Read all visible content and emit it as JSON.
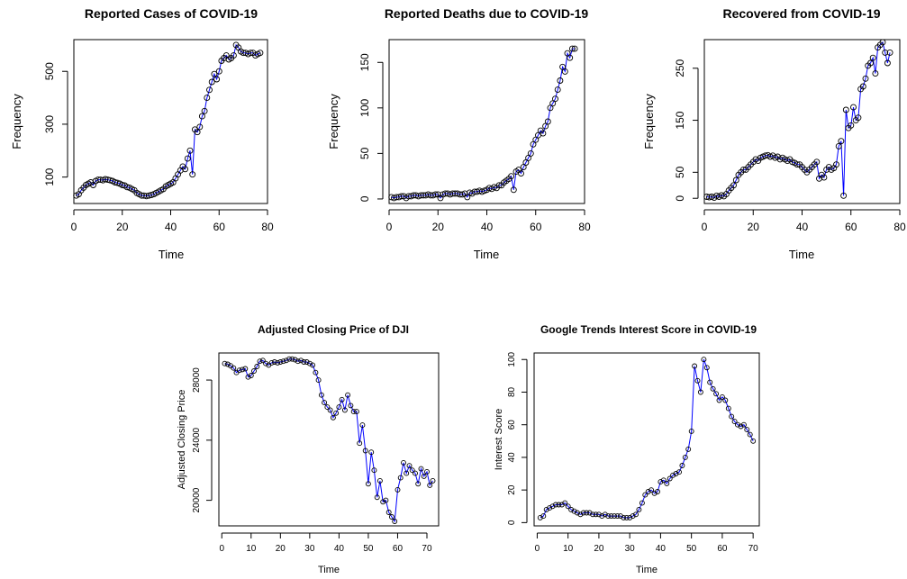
{
  "chart_data": [
    {
      "type": "line",
      "title": "Reported Cases of COVID-19",
      "xlabel": "Time",
      "ylabel": "Frequency",
      "xlim": [
        0,
        80
      ],
      "ylim": [
        0,
        620
      ],
      "xticks": [
        0,
        20,
        40,
        60,
        80
      ],
      "yticks": [
        100,
        300,
        500
      ],
      "series": [
        {
          "color": "#0000ff",
          "x": [
            1,
            2,
            3,
            4,
            5,
            6,
            7,
            8,
            9,
            10,
            11,
            12,
            13,
            14,
            15,
            16,
            17,
            18,
            19,
            20,
            21,
            22,
            23,
            24,
            25,
            26,
            27,
            28,
            29,
            30,
            31,
            32,
            33,
            34,
            35,
            36,
            37,
            38,
            39,
            40,
            41,
            42,
            43,
            44,
            45,
            46,
            47,
            48,
            49,
            50,
            51,
            52,
            53,
            54,
            55,
            56,
            57,
            58,
            59,
            60,
            61,
            62,
            63,
            64,
            65,
            66,
            67,
            68,
            69,
            70,
            71,
            72,
            73,
            74,
            75,
            76,
            77
          ],
          "y": [
            30,
            35,
            50,
            60,
            70,
            75,
            80,
            70,
            85,
            90,
            90,
            88,
            92,
            90,
            88,
            85,
            80,
            78,
            75,
            70,
            68,
            62,
            60,
            55,
            50,
            40,
            35,
            30,
            30,
            28,
            30,
            32,
            35,
            40,
            45,
            50,
            55,
            65,
            70,
            75,
            80,
            95,
            110,
            125,
            140,
            130,
            170,
            200,
            110,
            280,
            270,
            290,
            330,
            350,
            400,
            430,
            460,
            490,
            470,
            500,
            540,
            550,
            560,
            545,
            550,
            560,
            600,
            590,
            575,
            570,
            570,
            565,
            570,
            570,
            560,
            565,
            570
          ]
        }
      ]
    },
    {
      "type": "line",
      "title": "Reported Deaths due to COVID-19",
      "xlabel": "Time",
      "ylabel": "Frequency",
      "xlim": [
        0,
        80
      ],
      "ylim": [
        -5,
        175
      ],
      "xticks": [
        0,
        20,
        40,
        60,
        80
      ],
      "yticks": [
        0,
        50,
        100,
        150
      ],
      "series": [
        {
          "color": "#0000ff",
          "x": [
            1,
            2,
            3,
            4,
            5,
            6,
            7,
            8,
            9,
            10,
            11,
            12,
            13,
            14,
            15,
            16,
            17,
            18,
            19,
            20,
            21,
            22,
            23,
            24,
            25,
            26,
            27,
            28,
            29,
            30,
            31,
            32,
            33,
            34,
            35,
            36,
            37,
            38,
            39,
            40,
            41,
            42,
            43,
            44,
            45,
            46,
            47,
            48,
            49,
            50,
            51,
            52,
            53,
            54,
            55,
            56,
            57,
            58,
            59,
            60,
            61,
            62,
            63,
            64,
            65,
            66,
            67,
            68,
            69,
            70,
            71,
            72,
            73,
            74,
            75,
            76
          ],
          "y": [
            2,
            1,
            2,
            2,
            3,
            3,
            1,
            3,
            3,
            4,
            4,
            3,
            4,
            4,
            4,
            5,
            4,
            4,
            5,
            5,
            1,
            5,
            6,
            6,
            5,
            6,
            6,
            6,
            5,
            5,
            6,
            2,
            7,
            6,
            8,
            8,
            9,
            8,
            9,
            10,
            12,
            11,
            13,
            12,
            15,
            15,
            18,
            20,
            22,
            25,
            10,
            30,
            32,
            28,
            35,
            40,
            45,
            50,
            60,
            65,
            70,
            75,
            72,
            80,
            85,
            100,
            105,
            110,
            120,
            130,
            145,
            140,
            160,
            155,
            165,
            165
          ]
        }
      ]
    },
    {
      "type": "line",
      "title": "Recovered from COVID-19",
      "xlabel": "Time",
      "ylabel": "Frequency",
      "xlim": [
        0,
        80
      ],
      "ylim": [
        -10,
        305
      ],
      "xticks": [
        0,
        20,
        40,
        60,
        80
      ],
      "yticks": [
        0,
        50,
        150,
        250
      ],
      "series": [
        {
          "color": "#0000ff",
          "x": [
            1,
            2,
            3,
            4,
            5,
            6,
            7,
            8,
            9,
            10,
            11,
            12,
            13,
            14,
            15,
            16,
            17,
            18,
            19,
            20,
            21,
            22,
            23,
            24,
            25,
            26,
            27,
            28,
            29,
            30,
            31,
            32,
            33,
            34,
            35,
            36,
            37,
            38,
            39,
            40,
            41,
            42,
            43,
            44,
            45,
            46,
            47,
            48,
            49,
            50,
            51,
            52,
            53,
            54,
            55,
            56,
            57,
            58,
            59,
            60,
            61,
            62,
            63,
            64,
            65,
            66,
            67,
            68,
            69,
            70,
            71,
            72,
            73,
            74,
            75,
            76
          ],
          "y": [
            3,
            2,
            3,
            1,
            5,
            3,
            6,
            4,
            8,
            15,
            20,
            25,
            35,
            45,
            50,
            55,
            55,
            60,
            65,
            70,
            75,
            72,
            78,
            80,
            82,
            83,
            80,
            82,
            78,
            80,
            75,
            78,
            75,
            72,
            75,
            70,
            68,
            65,
            65,
            60,
            55,
            50,
            55,
            60,
            65,
            70,
            38,
            45,
            40,
            55,
            60,
            55,
            58,
            65,
            100,
            110,
            5,
            170,
            135,
            140,
            175,
            150,
            155,
            210,
            215,
            230,
            255,
            260,
            270,
            240,
            290,
            295,
            300,
            280,
            260,
            280
          ]
        }
      ]
    },
    {
      "type": "line",
      "title": "Adjusted Closing Price of DJI",
      "xlabel": "Time",
      "ylabel": "Adjusted Closing Price",
      "xlim": [
        -1,
        74
      ],
      "ylim": [
        18300,
        29800
      ],
      "xticks": [
        0,
        10,
        20,
        30,
        40,
        50,
        60,
        70
      ],
      "yticks": [
        20000,
        24000,
        28000
      ],
      "series": [
        {
          "color": "#0000ff",
          "x": [
            1,
            2,
            3,
            4,
            5,
            6,
            7,
            8,
            9,
            10,
            11,
            12,
            13,
            14,
            15,
            16,
            17,
            18,
            19,
            20,
            21,
            22,
            23,
            24,
            25,
            26,
            27,
            28,
            29,
            30,
            31,
            32,
            33,
            34,
            35,
            36,
            37,
            38,
            39,
            40,
            41,
            42,
            43,
            44,
            45,
            46,
            47,
            48,
            49,
            50,
            51,
            52,
            53,
            54,
            55,
            56,
            57,
            58,
            59,
            60,
            61,
            62,
            63,
            64,
            65,
            66,
            67,
            68,
            69,
            70,
            71,
            72
          ],
          "y": [
            29100,
            29050,
            28950,
            28800,
            28500,
            28650,
            28700,
            28750,
            28200,
            28300,
            28600,
            28900,
            29250,
            29300,
            29100,
            29000,
            29150,
            29200,
            29150,
            29200,
            29250,
            29300,
            29400,
            29400,
            29350,
            29250,
            29300,
            29200,
            29200,
            29100,
            29000,
            28500,
            28000,
            27000,
            26500,
            26200,
            26000,
            25500,
            25800,
            26200,
            26700,
            26000,
            27000,
            26300,
            25900,
            25900,
            23800,
            25000,
            23300,
            21100,
            23200,
            22000,
            20200,
            21300,
            19900,
            20000,
            19200,
            18900,
            18600,
            20700,
            21500,
            22500,
            21800,
            22300,
            22000,
            21800,
            21100,
            22100,
            21600,
            21900,
            21000,
            21300
          ]
        }
      ]
    },
    {
      "type": "line",
      "title": "Google Trends Interest Score in COVID-19",
      "xlabel": "Time",
      "ylabel": "Interest Score",
      "xlim": [
        -1,
        72
      ],
      "ylim": [
        -2,
        104
      ],
      "xticks": [
        0,
        10,
        20,
        30,
        40,
        50,
        60,
        70
      ],
      "yticks": [
        0,
        20,
        40,
        60,
        80,
        100
      ],
      "series": [
        {
          "color": "#0000ff",
          "x": [
            1,
            2,
            3,
            4,
            5,
            6,
            7,
            8,
            9,
            10,
            11,
            12,
            13,
            14,
            15,
            16,
            17,
            18,
            19,
            20,
            21,
            22,
            23,
            24,
            25,
            26,
            27,
            28,
            29,
            30,
            31,
            32,
            33,
            34,
            35,
            36,
            37,
            38,
            39,
            40,
            41,
            42,
            43,
            44,
            45,
            46,
            47,
            48,
            49,
            50,
            51,
            52,
            53,
            54,
            55,
            56,
            57,
            58,
            59,
            60,
            61,
            62,
            63,
            64,
            65,
            66,
            67,
            68,
            69,
            70
          ],
          "y": [
            3,
            4,
            8,
            9,
            10,
            11,
            11,
            11,
            12,
            10,
            8,
            7,
            6,
            5,
            6,
            6,
            6,
            5,
            5,
            5,
            4,
            5,
            4,
            4,
            4,
            4,
            4,
            3,
            3,
            3,
            4,
            5,
            8,
            12,
            17,
            19,
            20,
            18,
            19,
            25,
            26,
            24,
            27,
            29,
            30,
            31,
            35,
            40,
            45,
            56,
            96,
            87,
            80,
            100,
            95,
            86,
            82,
            79,
            75,
            77,
            75,
            70,
            65,
            62,
            60,
            59,
            60,
            57,
            54,
            50
          ]
        }
      ]
    }
  ]
}
